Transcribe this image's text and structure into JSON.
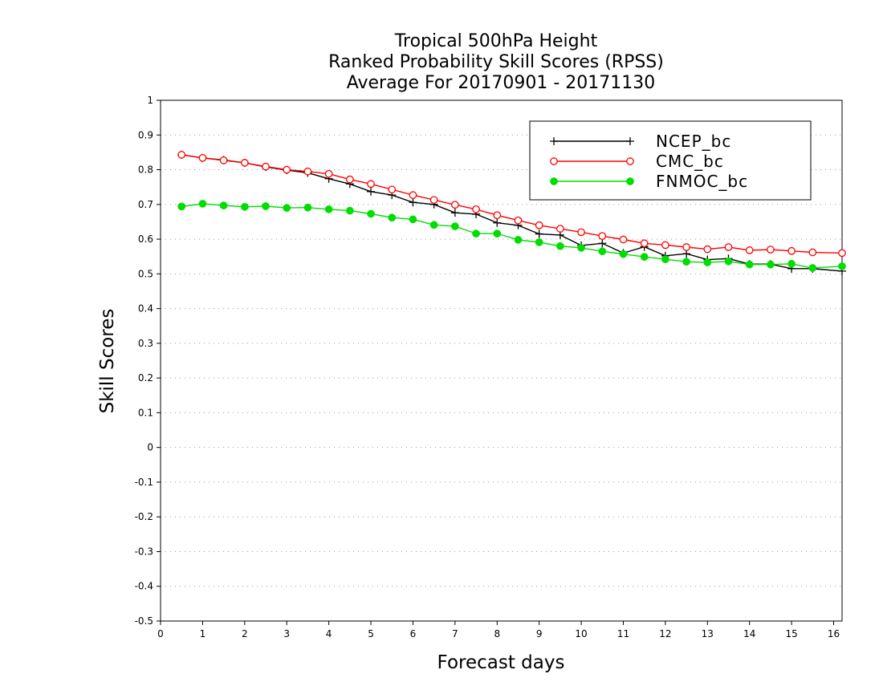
{
  "chart_data": {
    "type": "line",
    "title_lines": [
      "Tropical 500hPa Height",
      "Ranked Probability Skill Scores (RPSS)",
      "Average For 20170901 - 20171130"
    ],
    "xlabel": "Forecast days",
    "ylabel": "Skill Scores",
    "xlim": [
      0,
      16.2
    ],
    "ylim": [
      -0.5,
      1
    ],
    "xticks": [
      "0",
      "1",
      "2",
      "3",
      "4",
      "5",
      "6",
      "7",
      "8",
      "9",
      "10",
      "11",
      "12",
      "13",
      "14",
      "15",
      "16"
    ],
    "yticks": [
      "1",
      "0.9",
      "0.8",
      "0.7",
      "0.6",
      "0.5",
      "0.4",
      "0.3",
      "0.2",
      "0.1",
      "0",
      "-0.1",
      "-0.2",
      "-0.3",
      "-0.4",
      "-0.5"
    ],
    "grid": "horizontal dotted",
    "legend_position": "top-right",
    "x": [
      0.5,
      1,
      1.5,
      2,
      2.5,
      3,
      3.5,
      4,
      4.5,
      5,
      5.5,
      6,
      6.5,
      7,
      7.5,
      8,
      8.5,
      9,
      9.5,
      10,
      10.5,
      11,
      11.5,
      12,
      12.5,
      13,
      13.5,
      14,
      14.5,
      15,
      15.5,
      16.2
    ],
    "series": [
      {
        "name": "NCEP_bc",
        "color": "#000000",
        "marker": "plus",
        "values": [
          0.843,
          0.834,
          0.828,
          0.82,
          0.808,
          0.799,
          0.791,
          0.774,
          0.759,
          0.737,
          0.727,
          0.706,
          0.7,
          0.676,
          0.672,
          0.647,
          0.64,
          0.615,
          0.612,
          0.582,
          0.588,
          0.56,
          0.578,
          0.552,
          0.558,
          0.541,
          0.544,
          0.528,
          0.528,
          0.515,
          0.515,
          0.508
        ]
      },
      {
        "name": "CMC_bc",
        "color": "#ff0000",
        "marker": "open-circle",
        "values": [
          0.843,
          0.834,
          0.827,
          0.82,
          0.809,
          0.8,
          0.795,
          0.788,
          0.772,
          0.759,
          0.743,
          0.727,
          0.713,
          0.699,
          0.686,
          0.669,
          0.654,
          0.64,
          0.63,
          0.62,
          0.609,
          0.599,
          0.588,
          0.583,
          0.577,
          0.571,
          0.577,
          0.568,
          0.57,
          0.566,
          0.562,
          0.56
        ]
      },
      {
        "name": "FNMOC_bc",
        "color": "#00dd00",
        "marker": "filled-circle",
        "values": [
          0.694,
          0.702,
          0.697,
          0.693,
          0.695,
          0.69,
          0.691,
          0.686,
          0.682,
          0.673,
          0.662,
          0.657,
          0.641,
          0.637,
          0.616,
          0.616,
          0.598,
          0.591,
          0.58,
          0.575,
          0.565,
          0.557,
          0.549,
          0.542,
          0.535,
          0.533,
          0.536,
          0.527,
          0.527,
          0.529,
          0.517,
          0.522
        ]
      }
    ]
  }
}
